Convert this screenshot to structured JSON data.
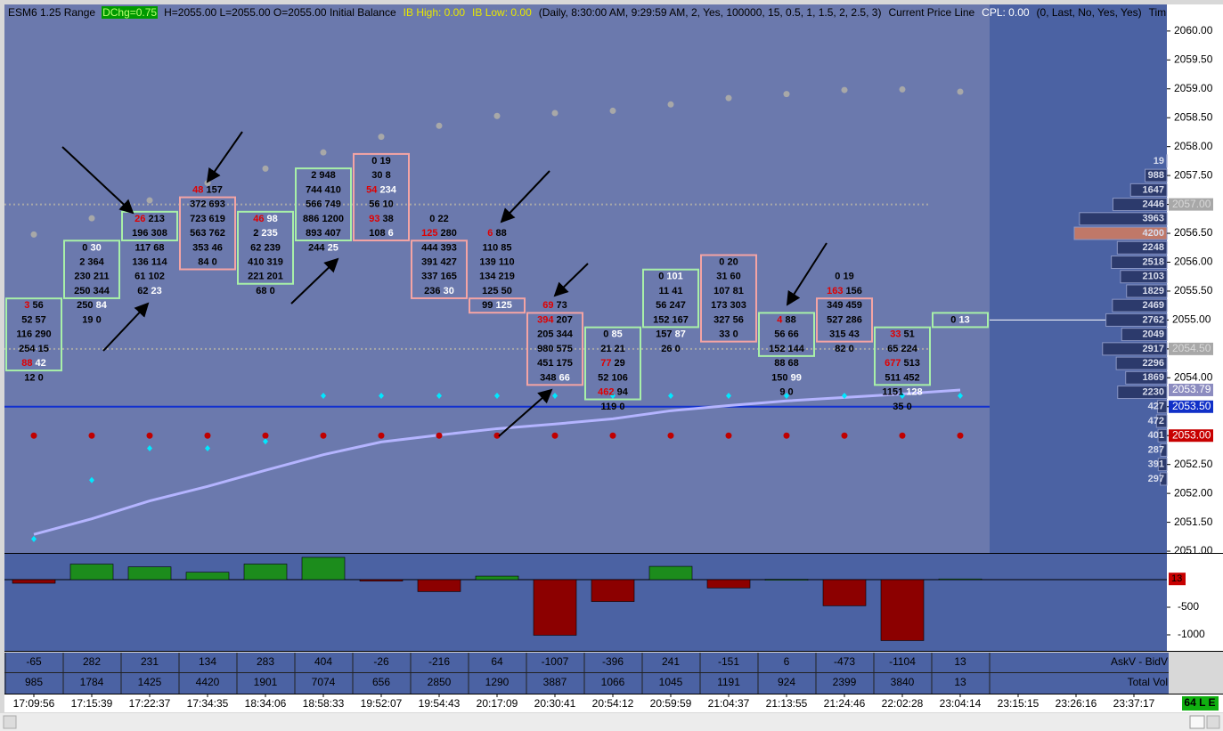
{
  "header": [
    {
      "text": "ESM6 1.25 Range",
      "color": "#000000"
    },
    {
      "text": "DChg=0.75",
      "color": "#b8ff70",
      "bg": "#009a00"
    },
    {
      "text": "H=2055.00 L=2055.00 O=2055.00 Initial Balance",
      "color": "#000000"
    },
    {
      "text": "IB High: 0.00",
      "color": "#e8e800"
    },
    {
      "text": "IB Low: 0.00",
      "color": "#e8e800"
    },
    {
      "text": "(Daily, 8:30:00 AM, 9:29:59 AM, 2, Yes, 100000, 15, 0.5, 1, 1.5, 2, 2.5, 3)",
      "color": "#000000"
    },
    {
      "text": "Current Price Line",
      "color": "#000000"
    },
    {
      "text": "CPL: 0.00",
      "color": "#ffffff"
    },
    {
      "text": "(0, Last, No, Yes, Yes)",
      "color": "#000000"
    },
    {
      "text": "Tim",
      "color": "#000000"
    }
  ],
  "chart_data": [
    {
      "type": "footprint",
      "ylim": [
        2050.97,
        2060.46
      ],
      "yticks": [
        {
          "value": 2051,
          "label": "2051.00"
        },
        {
          "value": 2051.5,
          "label": "2051.50"
        },
        {
          "value": 2052,
          "label": "2052.00"
        },
        {
          "value": 2052.5,
          "label": "2052.50"
        },
        {
          "value": 2053,
          "label": "2053.00"
        },
        {
          "value": 2053.5,
          "label": "2053.50"
        },
        {
          "value": 2054,
          "label": "2054.00"
        },
        {
          "value": 2054.5,
          "label": "2054.50"
        },
        {
          "value": 2055,
          "label": "2055.00"
        },
        {
          "value": 2055.5,
          "label": "2055.50"
        },
        {
          "value": 2056,
          "label": "2056.00"
        },
        {
          "value": 2056.5,
          "label": "2056.50"
        },
        {
          "value": 2057,
          "label": "2057.00"
        },
        {
          "value": 2057.5,
          "label": "2057.50"
        },
        {
          "value": 2058,
          "label": "2058.00"
        },
        {
          "value": 2058.5,
          "label": "2058.50"
        },
        {
          "value": 2059,
          "label": "2059.00"
        },
        {
          "value": 2059.5,
          "label": "2059.50"
        },
        {
          "value": 2060,
          "label": "2060.00"
        }
      ],
      "categories": [
        "17:09:56",
        "17:15:39",
        "17:22:37",
        "17:34:35",
        "18:34:06",
        "18:58:33",
        "19:52:07",
        "19:54:43",
        "20:17:09",
        "20:30:41",
        "20:54:12",
        "20:59:59",
        "21:04:37",
        "21:13:55",
        "21:24:46",
        "22:02:28",
        "23:04:14",
        "23:15:15",
        "23:26:16",
        "23:37:17"
      ],
      "bid_color": "#000000",
      "red_color": "#e00000",
      "white_color": "#ffffff",
      "bars": [
        {
          "prices": [
            2055.25,
            2055,
            2054.75,
            2054.5,
            2054.25,
            2054
          ],
          "bid": [
            3,
            52,
            116,
            254,
            88,
            12
          ],
          "ask": [
            56,
            57,
            290,
            15,
            42,
            0
          ],
          "box": [
            0,
            4
          ],
          "box_color": "#a8f0a8",
          "red_bids": [
            0,
            4
          ],
          "white_asks": [
            4
          ]
        },
        {
          "prices": [
            2056.25,
            2056,
            2055.75,
            2055.5,
            2055.25,
            2055
          ],
          "bid": [
            0,
            2,
            230,
            250,
            250,
            19
          ],
          "ask": [
            30,
            364,
            211,
            344,
            84,
            0
          ],
          "box": [
            0,
            3
          ],
          "box_color": "#a8f0a8",
          "red_bids": [],
          "white_asks": [
            0,
            4
          ]
        },
        {
          "prices": [
            2056.75,
            2056.5,
            2056.25,
            2056,
            2055.75,
            2055.5
          ],
          "bid": [
            26,
            196,
            117,
            136,
            61,
            62
          ],
          "ask": [
            213,
            308,
            68,
            114,
            102,
            23
          ],
          "box": [
            0,
            1
          ],
          "box_color": "#a8f0a8",
          "red_bids": [
            0
          ],
          "white_asks": [
            5
          ]
        },
        {
          "prices": [
            2057.25,
            2057,
            2056.75,
            2056.5,
            2056.25,
            2056
          ],
          "bid": [
            48,
            372,
            723,
            563,
            353,
            84
          ],
          "ask": [
            157,
            693,
            619,
            762,
            46,
            0
          ],
          "box": [
            1,
            5
          ],
          "box_color": "#f4a4a4",
          "red_bids": [
            0
          ],
          "white_asks": []
        },
        {
          "prices": [
            2056.75,
            2056.5,
            2056.25,
            2056,
            2055.75,
            2055.5
          ],
          "bid": [
            46,
            2,
            62,
            410,
            221,
            68
          ],
          "ask": [
            98,
            235,
            239,
            319,
            201,
            0
          ],
          "box": [
            0,
            4
          ],
          "box_color": "#a8f0a8",
          "red_bids": [
            0
          ],
          "white_asks": [
            0,
            1
          ]
        },
        {
          "prices": [
            2057.5,
            2057.25,
            2057,
            2056.75,
            2056.5,
            2056.25
          ],
          "bid": [
            2,
            744,
            566,
            886,
            893,
            244
          ],
          "ask": [
            948,
            410,
            749,
            1200,
            407,
            25
          ],
          "box": [
            0,
            4
          ],
          "box_color": "#a8f0a8",
          "red_bids": [],
          "white_asks": [
            5
          ]
        },
        {
          "prices": [
            2057.75,
            2057.5,
            2057.25,
            2057,
            2056.75,
            2056.5
          ],
          "bid": [
            0,
            30,
            54,
            56,
            93,
            108
          ],
          "ask": [
            19,
            8,
            234,
            10,
            38,
            6
          ],
          "box": [
            0,
            5
          ],
          "box_color": "#f4a4a4",
          "red_bids": [
            2,
            4
          ],
          "white_asks": [
            2,
            5
          ]
        },
        {
          "prices": [
            2056.75,
            2056.5,
            2056.25,
            2056,
            2055.75,
            2055.5
          ],
          "bid": [
            0,
            125,
            444,
            391,
            337,
            236
          ],
          "ask": [
            22,
            280,
            393,
            427,
            165,
            30
          ],
          "box": [
            2,
            5
          ],
          "box_color": "#f4a4a4",
          "red_bids": [
            1
          ],
          "white_asks": [
            5
          ]
        },
        {
          "prices": [
            2056.5,
            2056.25,
            2056,
            2055.75,
            2055.5,
            2055.25
          ],
          "bid": [
            6,
            110,
            139,
            134,
            125,
            99
          ],
          "ask": [
            88,
            85,
            110,
            219,
            50,
            125
          ],
          "box": [
            5,
            5
          ],
          "box_color": "#f4a4a4",
          "red_bids": [
            0
          ],
          "white_asks": [
            5
          ]
        },
        {
          "prices": [
            2055.25,
            2055,
            2054.75,
            2054.5,
            2054.25,
            2054
          ],
          "bid": [
            69,
            394,
            205,
            980,
            451,
            348
          ],
          "ask": [
            73,
            207,
            344,
            575,
            175,
            66
          ],
          "box": [
            1,
            5
          ],
          "box_color": "#f4a4a4",
          "red_bids": [
            0,
            1
          ],
          "white_asks": [
            5
          ]
        },
        {
          "prices": [
            2054.75,
            2054.5,
            2054.25,
            2054,
            2053.75,
            2053.5
          ],
          "bid": [
            0,
            21,
            77,
            52,
            462,
            119
          ],
          "ask": [
            85,
            21,
            29,
            106,
            94,
            0
          ],
          "box": [
            0,
            4
          ],
          "box_color": "#a8f0a8",
          "red_bids": [
            2,
            4
          ],
          "white_asks": [
            0
          ]
        },
        {
          "prices": [
            2055.75,
            2055.5,
            2055.25,
            2055,
            2054.75,
            2054.5
          ],
          "bid": [
            0,
            11,
            56,
            152,
            157,
            26
          ],
          "ask": [
            101,
            41,
            247,
            167,
            87,
            0
          ],
          "box": [
            0,
            3
          ],
          "box_color": "#a8f0a8",
          "red_bids": [],
          "white_asks": [
            0,
            4
          ]
        },
        {
          "prices": [
            2056,
            2055.75,
            2055.5,
            2055.25,
            2055,
            2054.75
          ],
          "bid": [
            0,
            31,
            107,
            173,
            327,
            33
          ],
          "ask": [
            20,
            60,
            81,
            303,
            56,
            0
          ],
          "box": [
            0,
            5
          ],
          "box_color": "#f4a4a4",
          "red_bids": [],
          "white_asks": []
        },
        {
          "prices": [
            2055,
            2054.75,
            2054.5,
            2054.25,
            2054,
            2053.75
          ],
          "bid": [
            4,
            56,
            152,
            88,
            150,
            9
          ],
          "ask": [
            88,
            66,
            144,
            68,
            99,
            0
          ],
          "box": [
            0,
            2
          ],
          "box_color": "#a8f0a8",
          "red_bids": [
            0
          ],
          "white_asks": [
            4
          ]
        },
        {
          "prices": [
            2055.75,
            2055.5,
            2055.25,
            2055,
            2054.75,
            2054.5
          ],
          "bid": [
            0,
            163,
            349,
            527,
            315,
            82
          ],
          "ask": [
            19,
            156,
            459,
            286,
            43,
            0
          ],
          "box": [
            2,
            4
          ],
          "box_color": "#f4a4a4",
          "red_bids": [
            1
          ],
          "white_asks": []
        },
        {
          "prices": [
            2054.75,
            2054.5,
            2054.25,
            2054,
            2053.75,
            2053.5
          ],
          "bid": [
            33,
            65,
            677,
            511,
            1151,
            35
          ],
          "ask": [
            51,
            224,
            513,
            452,
            128,
            0
          ],
          "box": [
            0,
            3
          ],
          "box_color": "#a8f0a8",
          "red_bids": [
            0,
            2
          ],
          "white_asks": [
            4
          ]
        },
        {
          "prices": [
            2055
          ],
          "bid": [
            0
          ],
          "ask": [
            13
          ],
          "box": [
            0,
            0
          ],
          "box_color": "#a8f0a8",
          "red_bids": [],
          "white_asks": [
            0
          ]
        }
      ],
      "upper_dots": {
        "color": "#a8a8a8",
        "values": [
          2056.48,
          2056.76,
          2057.07,
          2057.37,
          2057.62,
          2057.9,
          2058.17,
          2058.36,
          2058.53,
          2058.58,
          2058.62,
          2058.73,
          2058.84,
          2058.91,
          2058.98,
          2058.99,
          2058.95
        ]
      },
      "cyan_dots": {
        "color": "#00e8ff",
        "values": [
          2051.21,
          2052.23,
          2052.78,
          2052.78,
          2052.9,
          2053.69,
          2053.69,
          2053.69,
          2053.69,
          2053.69,
          2053.69,
          2053.69,
          2053.69,
          2053.69,
          2053.69,
          2053.69,
          2053.69
        ]
      },
      "red_dots": {
        "color": "#c00000",
        "values": [
          2053,
          2053,
          2053,
          2053,
          2053,
          2053,
          2053,
          2053,
          2053,
          2053,
          2053,
          2053,
          2053,
          2053,
          2053,
          2053,
          2053
        ]
      },
      "vwap": {
        "color": "#b4b4ff",
        "label_bg": "#8c8cc0",
        "values": [
          2051.29,
          2051.56,
          2051.87,
          2052.12,
          2052.4,
          2052.67,
          2052.89,
          2053.01,
          2053.12,
          2053.2,
          2053.29,
          2053.43,
          2053.52,
          2053.6,
          2053.66,
          2053.72,
          2053.79
        ]
      },
      "price_lines": [
        {
          "value": 2057,
          "label": "2057.00",
          "bg": "#a8a8a8",
          "text_color": "#d8d8d8",
          "style": "dotted",
          "color": "#a8a8a8"
        },
        {
          "value": 2055,
          "label": "2055.00",
          "bg": "#ffffff",
          "text_color": "#000000",
          "style": "current",
          "color": "#ffffff"
        },
        {
          "value": 2054.5,
          "label": "2054.50",
          "bg": "#a8a8a8",
          "text_color": "#d8d8d8",
          "style": "dotted",
          "color": "#a8a8a8"
        },
        {
          "value": 2053.5,
          "label": "2053.50",
          "bg": "#1030c8",
          "text_color": "#ffffff",
          "style": "solid",
          "color": "#1030d0"
        },
        {
          "value": 2053,
          "label": "2053.00",
          "bg": "#c80000",
          "text_color": "#ffffff",
          "style": "none",
          "color": "#c80000"
        }
      ],
      "profile": {
        "color": "#2c3a6c",
        "poc_color": "#c07868",
        "prices": [
          2057.75,
          2057.5,
          2057.25,
          2057,
          2056.75,
          2056.5,
          2056.25,
          2056,
          2055.75,
          2055.5,
          2055.25,
          2055,
          2054.75,
          2054.5,
          2054.25,
          2054,
          2053.75,
          2053.5,
          2053.25,
          2053,
          2052.75,
          2052.5,
          2052.25
        ],
        "values": [
          19,
          988,
          1647,
          2446,
          3963,
          4200,
          2248,
          2518,
          2103,
          1829,
          2469,
          2762,
          2049,
          2917,
          2296,
          1869,
          2230,
          427,
          472,
          401,
          287,
          391,
          297
        ]
      }
    },
    {
      "type": "bar",
      "ylim": [
        -1274,
        468
      ],
      "yticks": [
        -500,
        -1000
      ],
      "up_color": "#1c8c1c",
      "down_color": "#8c0000",
      "values": [
        -65,
        282,
        231,
        134,
        283,
        404,
        -26,
        -216,
        64,
        -1007,
        -396,
        241,
        -151,
        6,
        -473,
        -1104,
        13
      ]
    }
  ],
  "table": {
    "row_labels": [
      "AskV - BidV",
      "Total Vol"
    ],
    "total_vol": [
      985,
      1784,
      1425,
      4420,
      1901,
      7074,
      656,
      2850,
      1290,
      3887,
      1066,
      1045,
      1191,
      924,
      2399,
      3840,
      13
    ]
  },
  "status": "64 L E"
}
